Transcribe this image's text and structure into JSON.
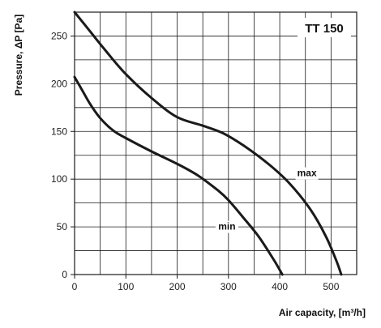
{
  "chart_data": {
    "type": "line",
    "title": "TT 150",
    "xlabel": "Air capacity, [m³/h]",
    "ylabel": "Pressure, ΔP [Pa]",
    "xlim": [
      0,
      550
    ],
    "ylim": [
      0,
      275
    ],
    "x_ticks": [
      0,
      100,
      200,
      300,
      400,
      500
    ],
    "y_ticks": [
      0,
      50,
      100,
      150,
      200,
      250
    ],
    "grid": true,
    "series": [
      {
        "name": "max",
        "x": [
          0,
          30,
          60,
          100,
          150,
          200,
          250,
          290,
          330,
          380,
          420,
          460,
          490,
          510,
          520
        ],
        "y": [
          275,
          255,
          235,
          210,
          185,
          165,
          156,
          148,
          135,
          115,
          95,
          68,
          40,
          15,
          0
        ]
      },
      {
        "name": "min",
        "x": [
          0,
          15,
          30,
          50,
          75,
          100,
          150,
          200,
          240,
          280,
          300,
          330,
          360,
          390,
          405
        ],
        "y": [
          207,
          193,
          179,
          164,
          151,
          143,
          129,
          116,
          104,
          88,
          78,
          59,
          39,
          14,
          0
        ]
      }
    ],
    "colors": {
      "line": "#1a1a1a",
      "grid": "#1a1a1a",
      "background": "#ffffff"
    }
  }
}
